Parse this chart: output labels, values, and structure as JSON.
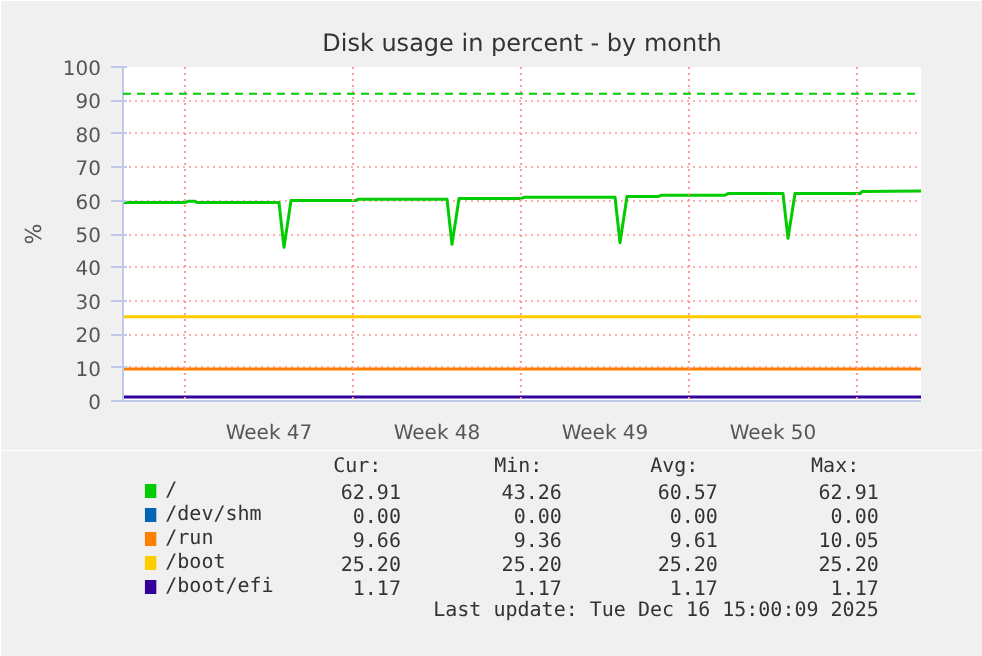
{
  "chart_data": {
    "type": "line",
    "title": "Disk usage in percent - by month",
    "ylabel": "%",
    "xlim": [
      "2025-11-14T10:00",
      "2025-12-17T16:00"
    ],
    "xticks": [
      {
        "value": "2025-11-20T12:00",
        "label": "Week 47"
      },
      {
        "value": "2025-11-27T12:00",
        "label": "Week 48"
      },
      {
        "value": "2025-12-04T12:00",
        "label": "Week 49"
      },
      {
        "value": "2025-12-11T12:00",
        "label": "Week 50"
      }
    ],
    "ylim": [
      0,
      100
    ],
    "yticks": [
      0,
      10,
      20,
      30,
      40,
      50,
      60,
      70,
      80,
      90,
      100
    ],
    "grid": "y",
    "legend": "bottom",
    "marker": "none",
    "line_style": "solid",
    "series": [
      {
        "name": "/",
        "color": "#00cc00",
        "x": [
          "2025-11-14T10:00",
          "2025-11-17T00:00",
          "2025-11-17T03:00",
          "2025-11-17T10:00",
          "2025-11-17T12:00",
          "2025-11-20T22:00",
          "2025-11-21T03:00",
          "2025-11-21T10:00",
          "2025-11-24T03:00",
          "2025-11-24T05:00",
          "2025-11-27T22:00",
          "2025-11-28T03:00",
          "2025-11-28T10:00",
          "2025-12-01T00:00",
          "2025-12-01T03:00",
          "2025-12-04T22:00",
          "2025-12-05T03:00",
          "2025-12-05T10:00",
          "2025-12-06T17:00",
          "2025-12-06T20:00",
          "2025-12-09T12:00",
          "2025-12-09T15:00",
          "2025-12-11T22:00",
          "2025-12-12T03:00",
          "2025-12-12T10:00",
          "2025-12-15T03:00",
          "2025-12-15T05:00",
          "2025-12-17T16:00"
        ],
        "values": [
          59.4,
          59.4,
          59.8,
          59.8,
          59.4,
          59.4,
          46.0,
          60.0,
          60.0,
          60.4,
          60.4,
          46.9,
          60.6,
          60.6,
          61.0,
          61.0,
          47.4,
          61.2,
          61.2,
          61.6,
          61.6,
          62.1,
          62.1,
          48.7,
          62.1,
          62.1,
          62.7,
          62.9
        ]
      },
      {
        "name": "/dev/shm",
        "color": "#0066b3",
        "values": [
          null
        ]
      },
      {
        "name": "/run",
        "color": "#ff8000",
        "x": [
          "2025-11-14T10:00",
          "2025-12-17T16:00"
        ],
        "values": [
          9.6,
          9.6
        ]
      },
      {
        "name": "/boot",
        "color": "#ffcc00",
        "x": [
          "2025-11-14T10:00",
          "2025-12-17T16:00"
        ],
        "values": [
          25.2,
          25.2
        ]
      },
      {
        "name": "/boot/efi",
        "color": "#330099",
        "x": [
          "2025-11-14T10:00",
          "2025-12-17T16:00"
        ],
        "values": [
          1.2,
          1.2
        ]
      }
    ],
    "ref_lines": [
      {
        "axis": "y",
        "value": 92,
        "color": "#00cc00",
        "line_style": "dashed"
      },
      {
        "axis": "x",
        "value": "2025-11-17",
        "color": "#ff9999",
        "line_style": "dotted"
      },
      {
        "axis": "x",
        "value": "2025-11-24",
        "color": "#ff9999",
        "line_style": "dotted"
      },
      {
        "axis": "x",
        "value": "2025-12-01",
        "color": "#ff9999",
        "line_style": "dotted"
      },
      {
        "axis": "x",
        "value": "2025-12-08",
        "color": "#ff9999",
        "line_style": "dotted"
      },
      {
        "axis": "x",
        "value": "2025-12-15",
        "color": "#ff9999",
        "line_style": "dotted"
      }
    ],
    "annotations": [
      "Cur:",
      "Min:",
      "Avg:",
      "Max:",
      "62.91",
      "43.26",
      "60.57",
      "62.91",
      "0.00",
      "0.00",
      "0.00",
      "0.00",
      "9.66",
      "9.36",
      "9.61",
      "10.05",
      "25.20",
      "25.20",
      "25.20",
      "25.20",
      "1.17",
      "1.17",
      "1.17",
      "1.17",
      "Last update: Tue Dec 16 15:00:09 2025"
    ]
  }
}
